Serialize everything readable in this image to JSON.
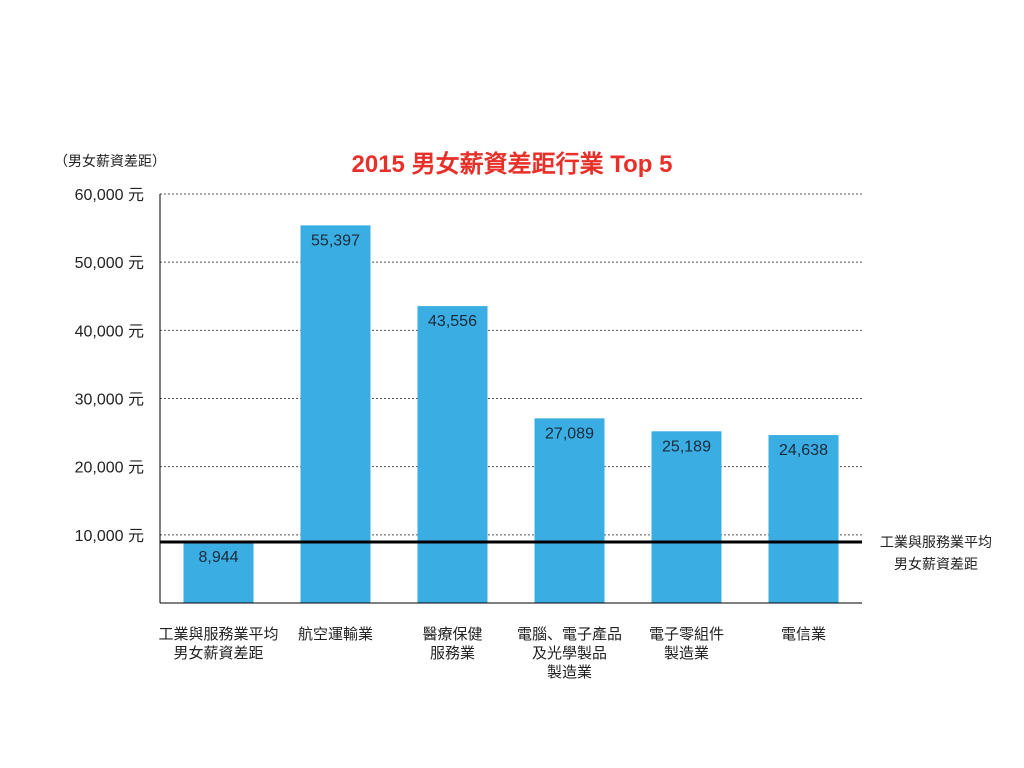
{
  "chart_data": {
    "type": "bar",
    "title": "2015 男女薪資差距行業 Top 5",
    "ylabel": "（男女薪資差距）",
    "ylim": [
      0,
      60000
    ],
    "yticks": [
      {
        "value": 10000,
        "label": "10,000 元"
      },
      {
        "value": 20000,
        "label": "20,000 元"
      },
      {
        "value": 30000,
        "label": "30,000 元"
      },
      {
        "value": 40000,
        "label": "40,000 元"
      },
      {
        "value": 50000,
        "label": "50,000 元"
      },
      {
        "value": 60000,
        "label": "60,000 元"
      }
    ],
    "grid": true,
    "categories": [
      [
        "工業與服務業平均",
        "男女薪資差距"
      ],
      [
        "航空運輸業"
      ],
      [
        "醫療保健",
        "服務業"
      ],
      [
        "電腦、電子產品",
        "及光學製品",
        "製造業"
      ],
      [
        "電子零組件",
        "製造業"
      ],
      [
        "電信業"
      ]
    ],
    "values": [
      8944,
      55397,
      43556,
      27089,
      25189,
      24638
    ],
    "value_labels": [
      "8,944",
      "55,397",
      "43,556",
      "27,089",
      "25,189",
      "24,638"
    ],
    "highlight_index": 0,
    "reference_line": {
      "value": 8944,
      "label": [
        "工業與服務業平均",
        "男女薪資差距"
      ]
    }
  },
  "colors": {
    "bar": "#3aaee3",
    "title": "#e8302a",
    "highlight_label": "#e8302a",
    "grid": "#555555",
    "reference_line": "#000000",
    "axis": "#000000"
  }
}
